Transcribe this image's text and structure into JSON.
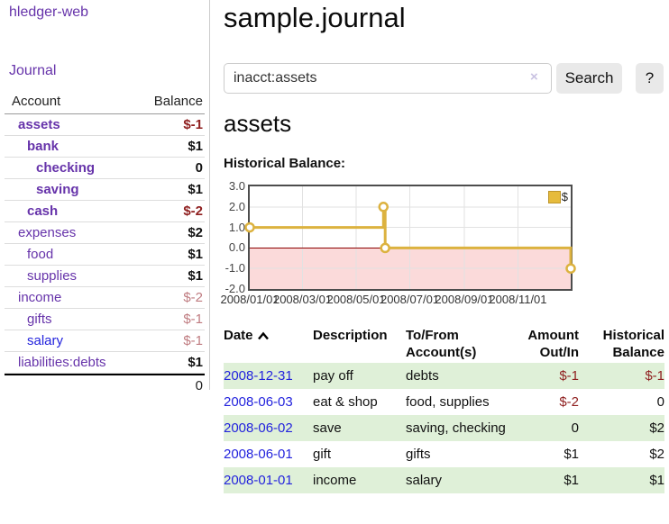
{
  "colors": {
    "accent_purple": "#6633aa",
    "link_blue": "#2323dd",
    "negative_strong": "#8f1f1f",
    "negative_soft": "#bf7b80",
    "row_stripe_green": "#dff0d8",
    "chart_line_gold": "#dcb23f",
    "chart_negative_region": "#fbdada",
    "chart_zero_line": "#8b0000",
    "chart_grid": "#e2e2e2"
  },
  "sidebar": {
    "brand": "hledger-web",
    "journal_link": "Journal",
    "accounts_table": {
      "headers": {
        "account": "Account",
        "balance": "Balance"
      },
      "rows": [
        {
          "name": "assets",
          "balance": "$-1",
          "depth": 1,
          "bold": true,
          "neg": "strong"
        },
        {
          "name": "bank",
          "balance": "$1",
          "depth": 2,
          "bold": true,
          "neg": "none"
        },
        {
          "name": "checking",
          "balance": "0",
          "depth": 3,
          "bold": true,
          "neg": "none"
        },
        {
          "name": "saving",
          "balance": "$1",
          "depth": 3,
          "bold": true,
          "neg": "none"
        },
        {
          "name": "cash",
          "balance": "$-2",
          "depth": 2,
          "bold": true,
          "neg": "strong"
        },
        {
          "name": "expenses",
          "balance": "$2",
          "depth": 1,
          "bold": false,
          "neg": "none"
        },
        {
          "name": "food",
          "balance": "$1",
          "depth": 2,
          "bold": false,
          "neg": "none"
        },
        {
          "name": "supplies",
          "balance": "$1",
          "depth": 2,
          "bold": false,
          "neg": "none"
        },
        {
          "name": "income",
          "balance": "$-2",
          "depth": 1,
          "bold": false,
          "neg": "soft"
        },
        {
          "name": "gifts",
          "balance": "$-1",
          "depth": 2,
          "bold": false,
          "neg": "soft"
        },
        {
          "name": "salary",
          "balance": "$-1",
          "depth": 2,
          "bold": false,
          "neg": "soft",
          "link_color": "blue"
        },
        {
          "name": "liabilities:debts",
          "balance": "$1",
          "depth": 1,
          "bold": false,
          "neg": "none"
        }
      ],
      "total": "0"
    }
  },
  "main": {
    "title": "sample.journal",
    "search": {
      "value": "inacct:assets",
      "clear_icon": "×",
      "button_label": "Search",
      "help_label": "?"
    },
    "account_heading": "assets",
    "chart_label": "Historical Balance:"
  },
  "chart_data": {
    "type": "line",
    "style": "step",
    "title": "Historical Balance",
    "series": [
      {
        "name": "$",
        "points": [
          {
            "date": "2008-01-01",
            "value": 1
          },
          {
            "date": "2008-06-01",
            "value": 2
          },
          {
            "date": "2008-06-03",
            "value": 0
          },
          {
            "date": "2008-12-31",
            "value": -1
          }
        ]
      }
    ],
    "x_range": [
      "2008-01-01",
      "2008-12-31"
    ],
    "x_ticks": [
      "2008/01/01",
      "2008/03/01",
      "2008/05/01",
      "2008/07/01",
      "2008/09/01",
      "2008/11/01"
    ],
    "y_ticks": [
      3.0,
      2.0,
      1.0,
      0.0,
      -1.0,
      -2.0
    ],
    "ylim": [
      -2,
      3
    ],
    "grid": true,
    "legend_position": "top-right",
    "negative_region_shaded": true
  },
  "register_table": {
    "headers": {
      "date": "Date",
      "description": "Description",
      "accounts": "To/From Account(s)",
      "amount": "Amount Out/In",
      "historical": "Historical Balance"
    },
    "sort_column": "date",
    "sort_direction": "ascending",
    "rows": [
      {
        "date": "2008-12-31",
        "description": "pay off",
        "accounts": "debts",
        "amount": "$-1",
        "amount_neg": true,
        "historical": "$-1",
        "historical_neg": true
      },
      {
        "date": "2008-06-03",
        "description": "eat & shop",
        "accounts": "food, supplies",
        "amount": "$-2",
        "amount_neg": true,
        "historical": "0",
        "historical_neg": false
      },
      {
        "date": "2008-06-02",
        "description": "save",
        "accounts": "saving, checking",
        "amount": "0",
        "amount_neg": false,
        "historical": "$2",
        "historical_neg": false
      },
      {
        "date": "2008-06-01",
        "description": "gift",
        "accounts": "gifts",
        "amount": "$1",
        "amount_neg": false,
        "historical": "$2",
        "historical_neg": false
      },
      {
        "date": "2008-01-01",
        "description": "income",
        "accounts": "salary",
        "amount": "$1",
        "amount_neg": false,
        "historical": "$1",
        "historical_neg": false
      }
    ]
  }
}
